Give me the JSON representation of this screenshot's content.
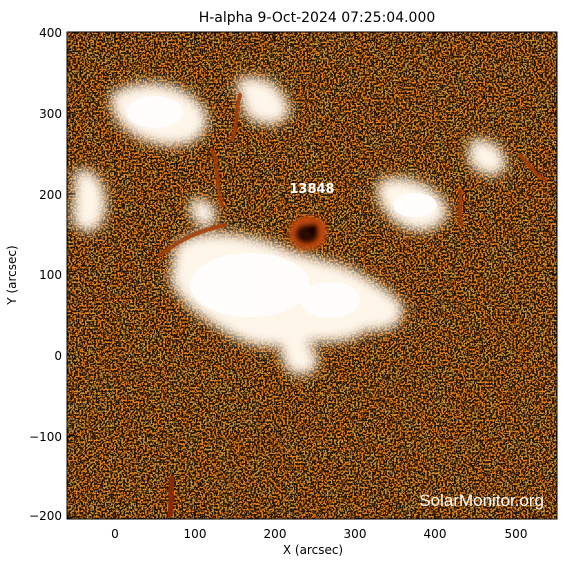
{
  "title": "H-alpha   9-Oct-2024 07:25:04.000",
  "region_label": "13848",
  "watermark": "SolarMonitor.org",
  "x_axis": {
    "label": "X (arcsec)",
    "ticks": [
      "0",
      "100",
      "200",
      "300",
      "400",
      "500"
    ]
  },
  "y_axis": {
    "label": "Y (arcsec)",
    "ticks": [
      "400",
      "300",
      "200",
      "100",
      "0",
      "−100",
      "−200"
    ]
  },
  "colors": {
    "background": "#e8801a",
    "plage": "#fff6ea",
    "spot": "#2a0a00",
    "fibril": "#b04a08"
  }
}
